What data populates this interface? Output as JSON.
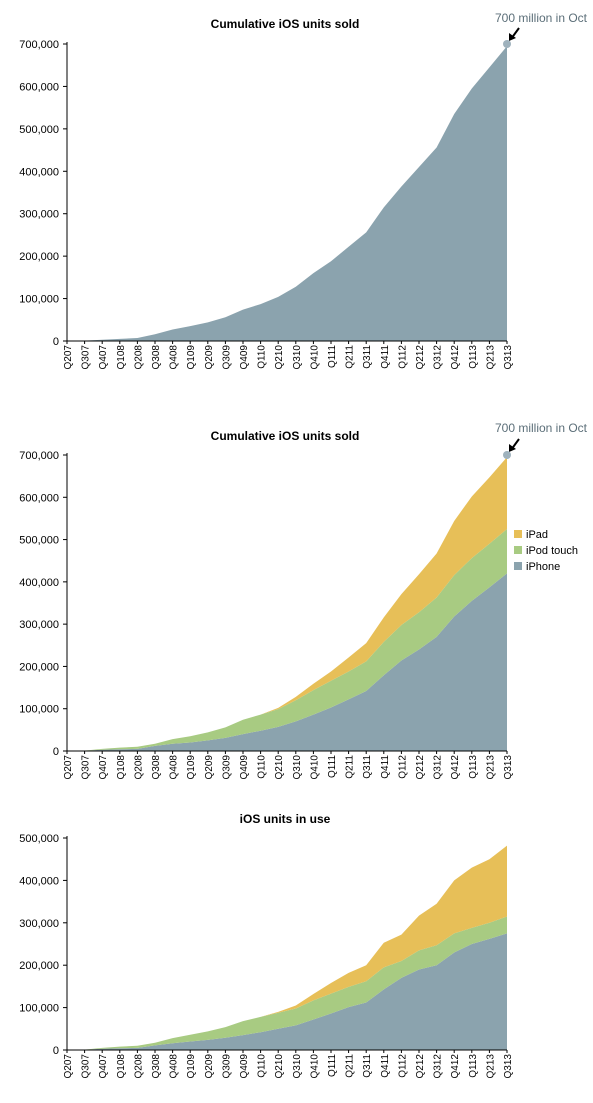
{
  "colors": {
    "iphone": "#8ba3ae",
    "ipod": "#a8cb82",
    "ipad": "#e7bf58",
    "axis": "#000000",
    "annotation_text": "#5b6e78",
    "annotation_dot": "#9fb2bd"
  },
  "chart_data": [
    {
      "type": "area",
      "stacked": false,
      "title": "Cumulative iOS units sold",
      "categories": [
        "Q207",
        "Q307",
        "Q407",
        "Q108",
        "Q208",
        "Q308",
        "Q408",
        "Q109",
        "Q209",
        "Q309",
        "Q409",
        "Q110",
        "Q210",
        "Q310",
        "Q410",
        "Q111",
        "Q211",
        "Q311",
        "Q411",
        "Q112",
        "Q212",
        "Q312",
        "Q412",
        "Q113",
        "Q213",
        "Q313"
      ],
      "series": [
        {
          "values": [
            0,
            1,
            3,
            5,
            7,
            16,
            27,
            35,
            44,
            56,
            74,
            87,
            104,
            128,
            160,
            188,
            222,
            256,
            315,
            364,
            410,
            456,
            535,
            595,
            645,
            695
          ],
          "color_key": "iphone"
        }
      ],
      "ylim": [
        0,
        700000
      ],
      "yticks": [
        "0",
        "100,000",
        "200,000",
        "300,000",
        "400,000",
        "500,000",
        "600,000",
        "700,000"
      ],
      "ytick_values": [
        0,
        100000,
        200000,
        300000,
        400000,
        500000,
        600000,
        700000
      ],
      "value_multiplier": 1000,
      "annotation": {
        "text": "700 million in Oct",
        "value": 700000
      },
      "legend": null
    },
    {
      "type": "area",
      "stacked": true,
      "title": "Cumulative iOS units sold",
      "categories": [
        "Q207",
        "Q307",
        "Q407",
        "Q108",
        "Q208",
        "Q308",
        "Q408",
        "Q109",
        "Q209",
        "Q309",
        "Q409",
        "Q110",
        "Q210",
        "Q310",
        "Q410",
        "Q111",
        "Q211",
        "Q311",
        "Q411",
        "Q112",
        "Q212",
        "Q312",
        "Q412",
        "Q113",
        "Q213",
        "Q313"
      ],
      "series": [
        {
          "name": "iPhone",
          "color_key": "iphone",
          "values": [
            0,
            1,
            3,
            4,
            5,
            12,
            17,
            20,
            25,
            31,
            40,
            48,
            57,
            70,
            86,
            103,
            122,
            142,
            179,
            214,
            240,
            270,
            318,
            355,
            387,
            420
          ]
        },
        {
          "name": "iPod touch",
          "color_key": "ipod",
          "values": [
            0,
            0,
            2,
            4,
            5,
            5,
            11,
            15,
            19,
            25,
            34,
            38,
            42,
            50,
            58,
            63,
            66,
            70,
            79,
            84,
            88,
            93,
            98,
            101,
            103,
            105
          ]
        },
        {
          "name": "iPad",
          "color_key": "ipad",
          "values": [
            0,
            0,
            0,
            0,
            0,
            0,
            0,
            0,
            0,
            0,
            0,
            0,
            3,
            8,
            15,
            22,
            33,
            43,
            58,
            73,
            90,
            104,
            128,
            146,
            157,
            170
          ]
        }
      ],
      "ylim": [
        0,
        700000
      ],
      "yticks": [
        "0",
        "100,000",
        "200,000",
        "300,000",
        "400,000",
        "500,000",
        "600,000",
        "700,000"
      ],
      "ytick_values": [
        0,
        100000,
        200000,
        300000,
        400000,
        500000,
        600000,
        700000
      ],
      "value_multiplier": 1000,
      "annotation": {
        "text": "700 million in Oct",
        "value": 700000
      },
      "legend": {
        "placement": "right",
        "order": [
          "iPad",
          "iPod touch",
          "iPhone"
        ]
      }
    },
    {
      "type": "area",
      "stacked": true,
      "title": "iOS units in use",
      "categories": [
        "Q207",
        "Q307",
        "Q407",
        "Q108",
        "Q208",
        "Q308",
        "Q408",
        "Q109",
        "Q209",
        "Q309",
        "Q409",
        "Q110",
        "Q210",
        "Q310",
        "Q410",
        "Q111",
        "Q211",
        "Q311",
        "Q411",
        "Q112",
        "Q212",
        "Q312",
        "Q412",
        "Q113",
        "Q213",
        "Q313"
      ],
      "series": [
        {
          "name": "iPhone",
          "color_key": "iphone",
          "values": [
            0,
            1,
            3,
            4,
            5,
            11,
            16,
            20,
            24,
            29,
            35,
            42,
            50,
            58,
            72,
            86,
            101,
            112,
            143,
            170,
            190,
            200,
            230,
            250,
            262,
            275
          ]
        },
        {
          "name": "iPod touch",
          "color_key": "ipod",
          "values": [
            0,
            0,
            2,
            4,
            5,
            6,
            12,
            16,
            20,
            25,
            33,
            36,
            38,
            40,
            45,
            47,
            48,
            50,
            52,
            40,
            45,
            47,
            45,
            38,
            38,
            40
          ]
        },
        {
          "name": "iPad",
          "color_key": "ipad",
          "values": [
            0,
            0,
            0,
            0,
            0,
            0,
            0,
            0,
            0,
            0,
            0,
            0,
            2,
            7,
            15,
            25,
            33,
            38,
            58,
            62,
            82,
            98,
            125,
            142,
            150,
            167
          ]
        }
      ],
      "ylim": [
        0,
        500000
      ],
      "yticks": [
        "0",
        "100,000",
        "200,000",
        "300,000",
        "400,000",
        "500,000"
      ],
      "ytick_values": [
        0,
        100000,
        200000,
        300000,
        400000,
        500000
      ],
      "value_multiplier": 1000,
      "annotation": null,
      "legend": null
    }
  ]
}
